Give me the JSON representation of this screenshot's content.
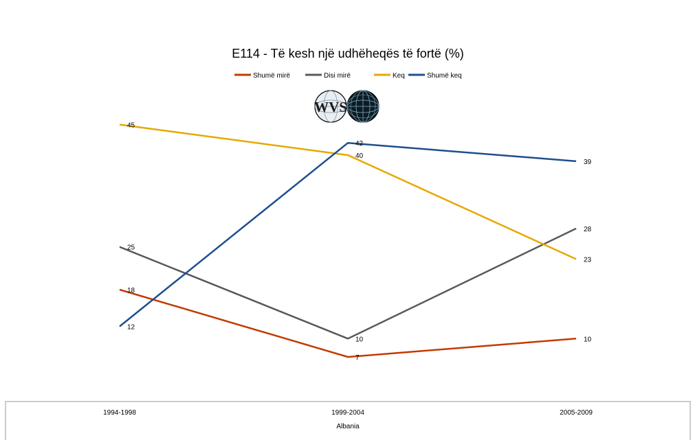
{
  "chart_data": {
    "type": "line",
    "title": "E114 - Të kesh një udhëheqës të fortë (%)",
    "categories": [
      "1994-1998",
      "1999-2004",
      "2005-2009"
    ],
    "group_label": "Albania",
    "xlabel": "",
    "ylabel": "",
    "ylim": [
      0,
      50
    ],
    "grid": false,
    "legend_position": "top",
    "logo_text": "WVS",
    "series": [
      {
        "name": "Shumë mirë",
        "color": "#c0504d",
        "stroke": "#c23b00",
        "values": [
          18,
          7,
          10
        ]
      },
      {
        "name": "Disi mirë",
        "color": "#595959",
        "stroke": "#595959",
        "values": [
          25,
          10,
          28
        ]
      },
      {
        "name": "Keq",
        "color": "#e6a800",
        "stroke": "#e6a800",
        "values": [
          45,
          40,
          23
        ]
      },
      {
        "name": "Shumë keq",
        "color": "#1f4e8c",
        "stroke": "#1f4e8c",
        "values": [
          12,
          42,
          39
        ]
      }
    ]
  }
}
